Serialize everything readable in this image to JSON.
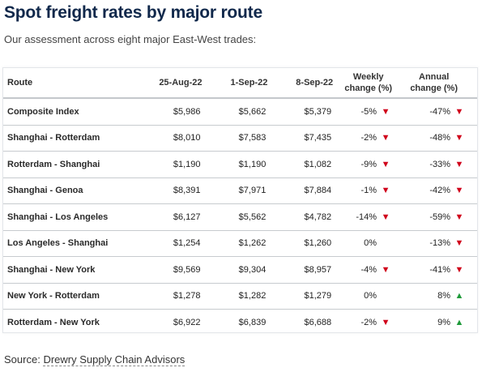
{
  "title": "Spot freight rates by major route",
  "subtitle": "Our assessment across eight major East-West trades:",
  "table": {
    "headers": {
      "route": "Route",
      "d1": "25-Aug-22",
      "d2": "1-Sep-22",
      "d3": "8-Sep-22",
      "weekly_line1": "Weekly",
      "weekly_line2": "change (%)",
      "annual_line1": "Annual",
      "annual_line2": "change (%)"
    },
    "rows": [
      {
        "route": "Composite Index",
        "d1": "$5,986",
        "d2": "$5,662",
        "d3": "$5,379",
        "weekly": "-5%",
        "weekly_dir": "down",
        "annual": "-47%",
        "annual_dir": "down"
      },
      {
        "route": "Shanghai - Rotterdam",
        "d1": "$8,010",
        "d2": "$7,583",
        "d3": "$7,435",
        "weekly": "-2%",
        "weekly_dir": "down",
        "annual": "-48%",
        "annual_dir": "down"
      },
      {
        "route": "Rotterdam - Shanghai",
        "d1": "$1,190",
        "d2": "$1,190",
        "d3": "$1,082",
        "weekly": "-9%",
        "weekly_dir": "down",
        "annual": "-33%",
        "annual_dir": "down"
      },
      {
        "route": "Shanghai - Genoa",
        "d1": "$8,391",
        "d2": "$7,971",
        "d3": "$7,884",
        "weekly": "-1%",
        "weekly_dir": "down",
        "annual": "-42%",
        "annual_dir": "down"
      },
      {
        "route": "Shanghai - Los Angeles",
        "d1": "$6,127",
        "d2": "$5,562",
        "d3": "$4,782",
        "weekly": "-14%",
        "weekly_dir": "down",
        "annual": "-59%",
        "annual_dir": "down"
      },
      {
        "route": "Los Angeles - Shanghai",
        "d1": "$1,254",
        "d2": "$1,262",
        "d3": "$1,260",
        "weekly": "0%",
        "weekly_dir": "none",
        "annual": "-13%",
        "annual_dir": "down"
      },
      {
        "route": "Shanghai - New York",
        "d1": "$9,569",
        "d2": "$9,304",
        "d3": "$8,957",
        "weekly": "-4%",
        "weekly_dir": "down",
        "annual": "-41%",
        "annual_dir": "down"
      },
      {
        "route": "New York - Rotterdam",
        "d1": "$1,278",
        "d2": "$1,282",
        "d3": "$1,279",
        "weekly": "0%",
        "weekly_dir": "none",
        "annual": "8%",
        "annual_dir": "up"
      },
      {
        "route": "Rotterdam - New York",
        "d1": "$6,922",
        "d2": "$6,839",
        "d3": "$6,688",
        "weekly": "-2%",
        "weekly_dir": "down",
        "annual": "9%",
        "annual_dir": "up"
      }
    ]
  },
  "source": {
    "prefix": "Source:",
    "link_text": "Drewry Supply Chain Advisors"
  },
  "colors": {
    "title": "#10284b",
    "down_arrow": "#d0021b",
    "up_arrow": "#1f9a3a"
  }
}
